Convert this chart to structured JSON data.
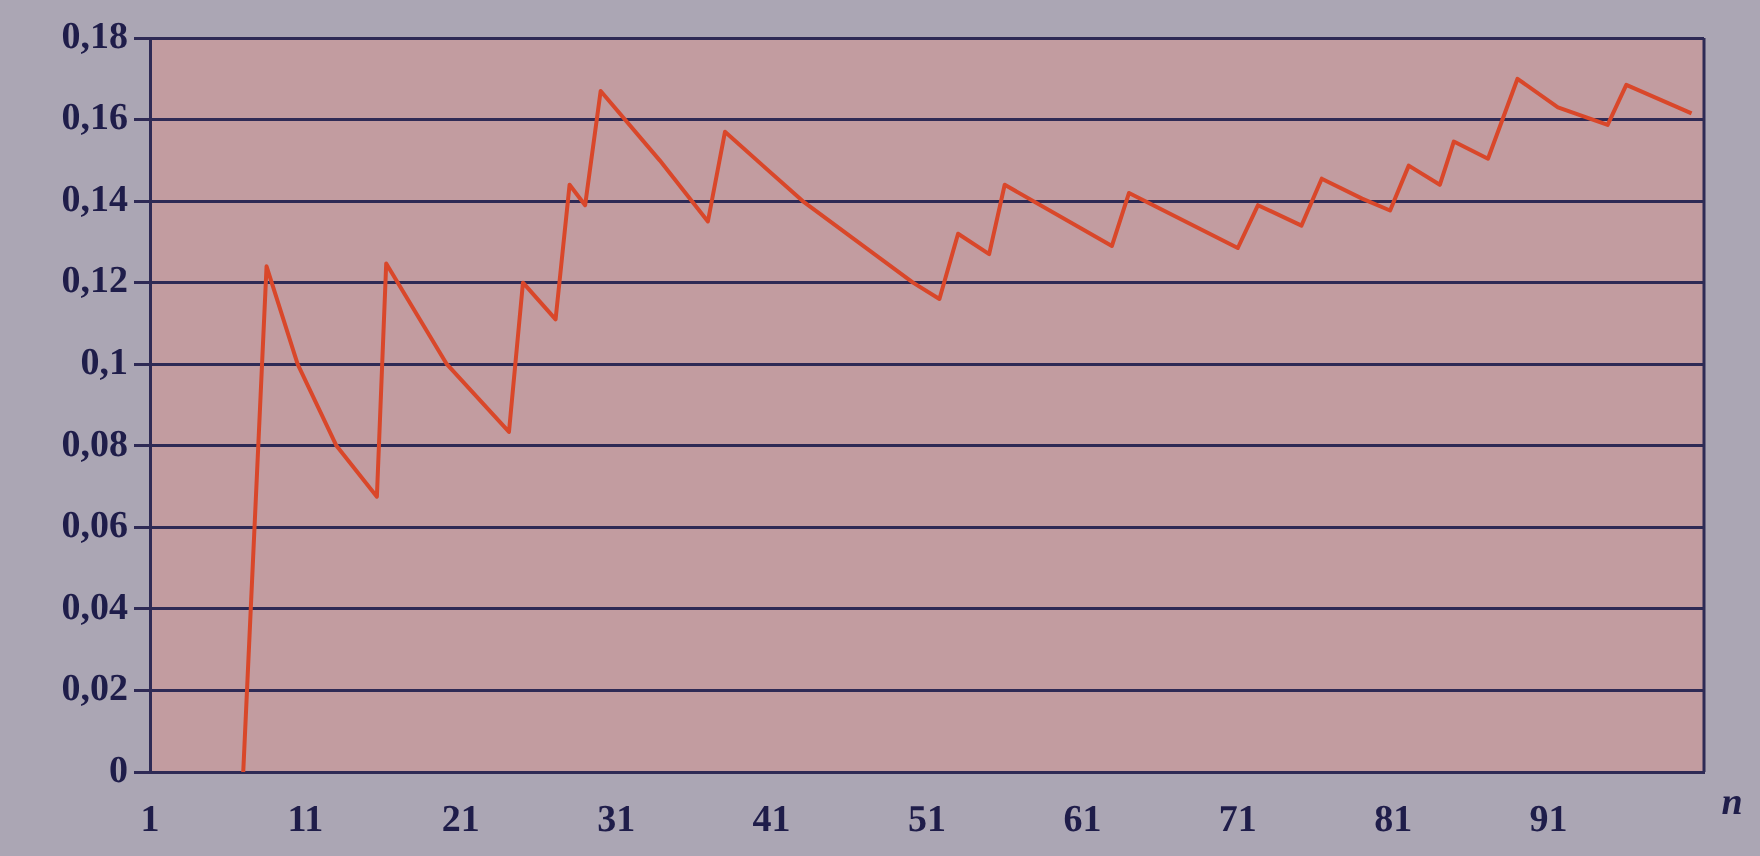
{
  "chart_data": {
    "type": "line",
    "xlabel": "n",
    "x": [
      7,
      8.5,
      10.5,
      13,
      15.6,
      16.2,
      20.1,
      24.1,
      25,
      27.1,
      28,
      29,
      30,
      33.8,
      36.9,
      38,
      43,
      50.1,
      51.8,
      53,
      55,
      56,
      62.9,
      64,
      71,
      72.3,
      75.1,
      76.4,
      79,
      80.8,
      82,
      84,
      84.9,
      87.1,
      89,
      91.6,
      94.8,
      96,
      100.2
    ],
    "series": [
      {
        "color": "#d9472a",
        "values": [
          0,
          0.124,
          0.1,
          0.08,
          0.0675,
          0.1247,
          0.1,
          0.0834,
          0.12,
          0.111,
          0.144,
          0.139,
          0.167,
          0.15,
          0.135,
          0.157,
          0.14,
          0.12,
          0.116,
          0.132,
          0.127,
          0.144,
          0.129,
          0.142,
          0.1285,
          0.139,
          0.134,
          0.1455,
          0.1406,
          0.1377,
          0.1487,
          0.144,
          0.1546,
          0.1504,
          0.17,
          0.163,
          0.1587,
          0.1685,
          0.1615
        ]
      }
    ],
    "xlim": [
      1,
      101
    ],
    "xticks": [
      1,
      11,
      21,
      31,
      41,
      51,
      61,
      71,
      81,
      91
    ],
    "ylim": [
      0,
      0.18
    ],
    "yticks": [
      {
        "value": 0,
        "label": "0"
      },
      {
        "value": 0.02,
        "label": "0,02"
      },
      {
        "value": 0.04,
        "label": "0,04"
      },
      {
        "value": 0.06,
        "label": "0,06"
      },
      {
        "value": 0.08,
        "label": "0,08"
      },
      {
        "value": 0.1,
        "label": "0,1"
      },
      {
        "value": 0.12,
        "label": "0,12"
      },
      {
        "value": 0.14,
        "label": "0,14"
      },
      {
        "value": 0.16,
        "label": "0,16"
      },
      {
        "value": 0.18,
        "label": "0,18"
      }
    ],
    "grid": "y",
    "marker": "none",
    "line_style": "solid",
    "legend": false
  }
}
